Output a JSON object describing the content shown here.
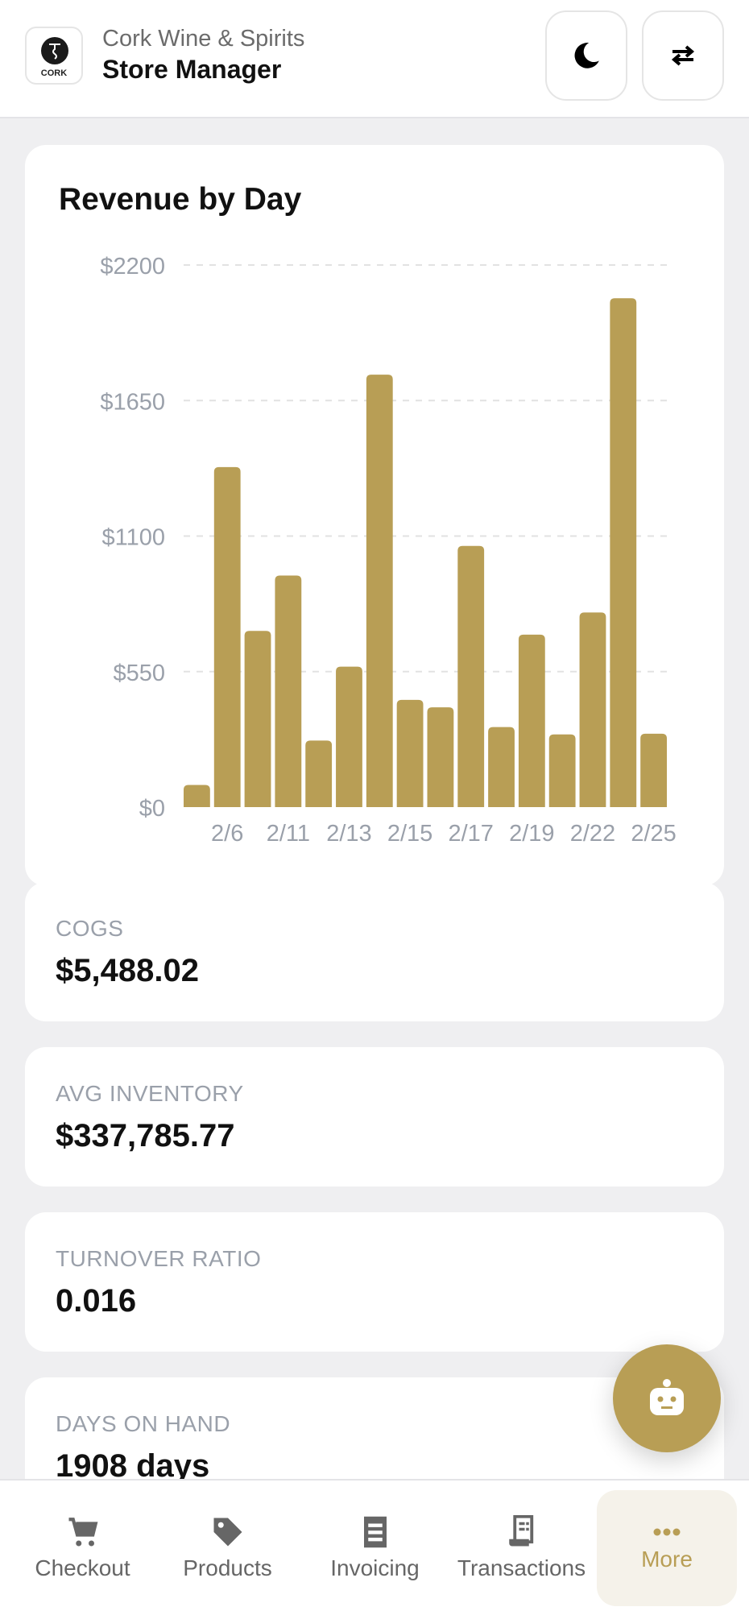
{
  "header": {
    "logo_text": "CORK",
    "store_name": "Cork Wine & Spirits",
    "role": "Store Manager",
    "theme_icon": "moon-icon",
    "switch_icon": "swap-arrows-icon"
  },
  "chart_card": {
    "title": "Revenue by Day"
  },
  "chart_data": {
    "type": "bar",
    "title": "Revenue by Day",
    "categories": [
      "",
      "2/6",
      "",
      "2/11",
      "",
      "2/13",
      "",
      "2/15",
      "",
      "2/17",
      "",
      "2/19",
      "",
      "2/22",
      "",
      "2/25"
    ],
    "values": [
      90,
      1380,
      715,
      940,
      270,
      570,
      1755,
      435,
      405,
      1060,
      325,
      700,
      295,
      790,
      2065,
      298
    ],
    "yticks": [
      "$0",
      "$550",
      "$1100",
      "$1650",
      "$2200"
    ],
    "ylim": [
      0,
      2200
    ],
    "grid": true,
    "bar_color": "#b89e55"
  },
  "metrics": [
    {
      "label": "COGS",
      "value": "$5,488.02"
    },
    {
      "label": "AVG INVENTORY",
      "value": "$337,785.77"
    },
    {
      "label": "TURNOVER RATIO",
      "value": "0.016"
    },
    {
      "label": "DAYS ON HAND",
      "value": "1908 days"
    }
  ],
  "fab": {
    "icon": "robot-icon"
  },
  "nav": [
    {
      "label": "Checkout",
      "icon": "cart-icon"
    },
    {
      "label": "Products",
      "icon": "tag-icon"
    },
    {
      "label": "Invoicing",
      "icon": "receipt-icon"
    },
    {
      "label": "Transactions",
      "icon": "transactions-receipt-icon"
    },
    {
      "label": "More",
      "icon": "more-dots-icon",
      "active": true
    }
  ],
  "colors": {
    "accent": "#b89e55",
    "background": "#efeff1"
  }
}
